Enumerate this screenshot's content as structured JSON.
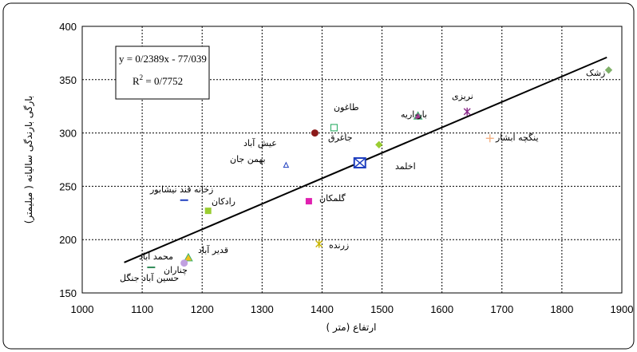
{
  "chart_data": {
    "type": "scatter",
    "xlabel": "ارتفاع (متر )",
    "ylabel": "بارگی بارندگی سالیانه ( میلیمتر)",
    "xlim": [
      1000,
      1900
    ],
    "ylim": [
      150,
      400
    ],
    "x_ticks": [
      "1000",
      "1100",
      "1200",
      "1300",
      "1400",
      "1500",
      "1600",
      "1700",
      "1800",
      "1900"
    ],
    "y_ticks": [
      "150",
      "200",
      "250",
      "300",
      "350",
      "400"
    ],
    "grid": true,
    "trendline": {
      "equation": "y = 0/2389x - 77/039",
      "r2_prefix": "R",
      "r2_exp": "2",
      "r2_value": " = 0/7752",
      "x_start": 1070,
      "x_end": 1875,
      "slope": 0.2389,
      "intercept": -77.039
    },
    "points": [
      {
        "label": "زشک",
        "x": 1878,
        "y": 359,
        "marker": "diamond",
        "color": "#7fb069"
      },
      {
        "label": "نریزی",
        "x": 1642,
        "y": 320,
        "marker": "star",
        "color": "#8b2a8b"
      },
      {
        "label": "ینگچه ابشار",
        "x": 1680,
        "y": 295,
        "marker": "plus",
        "color": "#f4b183"
      },
      {
        "label": "بار-اریه",
        "x": 1560,
        "y": 316,
        "marker": "triangle",
        "color": "#a23b8f"
      },
      {
        "label": "طاغون",
        "x": 1420,
        "y": 305,
        "marker": "square-open",
        "color": "#3cb371"
      },
      {
        "label": "جاغرق",
        "x": 1388,
        "y": 300,
        "marker": "circle",
        "color": "#8b1a1a"
      },
      {
        "label": "",
        "x": 1495,
        "y": 289,
        "marker": "diamond",
        "color": "#9acd32"
      },
      {
        "label": "اخلمد",
        "x": 1463,
        "y": 272,
        "marker": "square-x",
        "color": "#1f3fbf"
      },
      {
        "label": "عیش آباد",
        "x": 1340,
        "y": 270,
        "marker": "triangle-open",
        "color": "#1f3fbf"
      },
      {
        "label": "بهمن جان",
        "x": 1340,
        "y": 270,
        "marker": "none",
        "color": "#000000"
      },
      {
        "label": "زخانه قند نیشابور",
        "x": 1170,
        "y": 237,
        "marker": "dash",
        "color": "#1f3fbf"
      },
      {
        "label": "رادکان",
        "x": 1210,
        "y": 227,
        "marker": "square",
        "color": "#9acd32"
      },
      {
        "label": "گلمکان",
        "x": 1378,
        "y": 236,
        "marker": "square",
        "color": "#e020b0"
      },
      {
        "label": "زرنده",
        "x": 1395,
        "y": 196,
        "marker": "star",
        "color": "#c8b400"
      },
      {
        "label": "قدیر آباد",
        "x": 1177,
        "y": 183,
        "marker": "triangle",
        "color": "#f0c020"
      },
      {
        "label": "محمد آباد",
        "x": 1170,
        "y": 178,
        "marker": "circle",
        "color": "#c0a0e0"
      },
      {
        "label": "چناران",
        "x": 1115,
        "y": 174,
        "marker": "dash",
        "color": "#2e8b57"
      },
      {
        "label": "حسین آباد جنگل",
        "x": 1085,
        "y": 162,
        "marker": "none",
        "color": "#000000"
      }
    ]
  }
}
